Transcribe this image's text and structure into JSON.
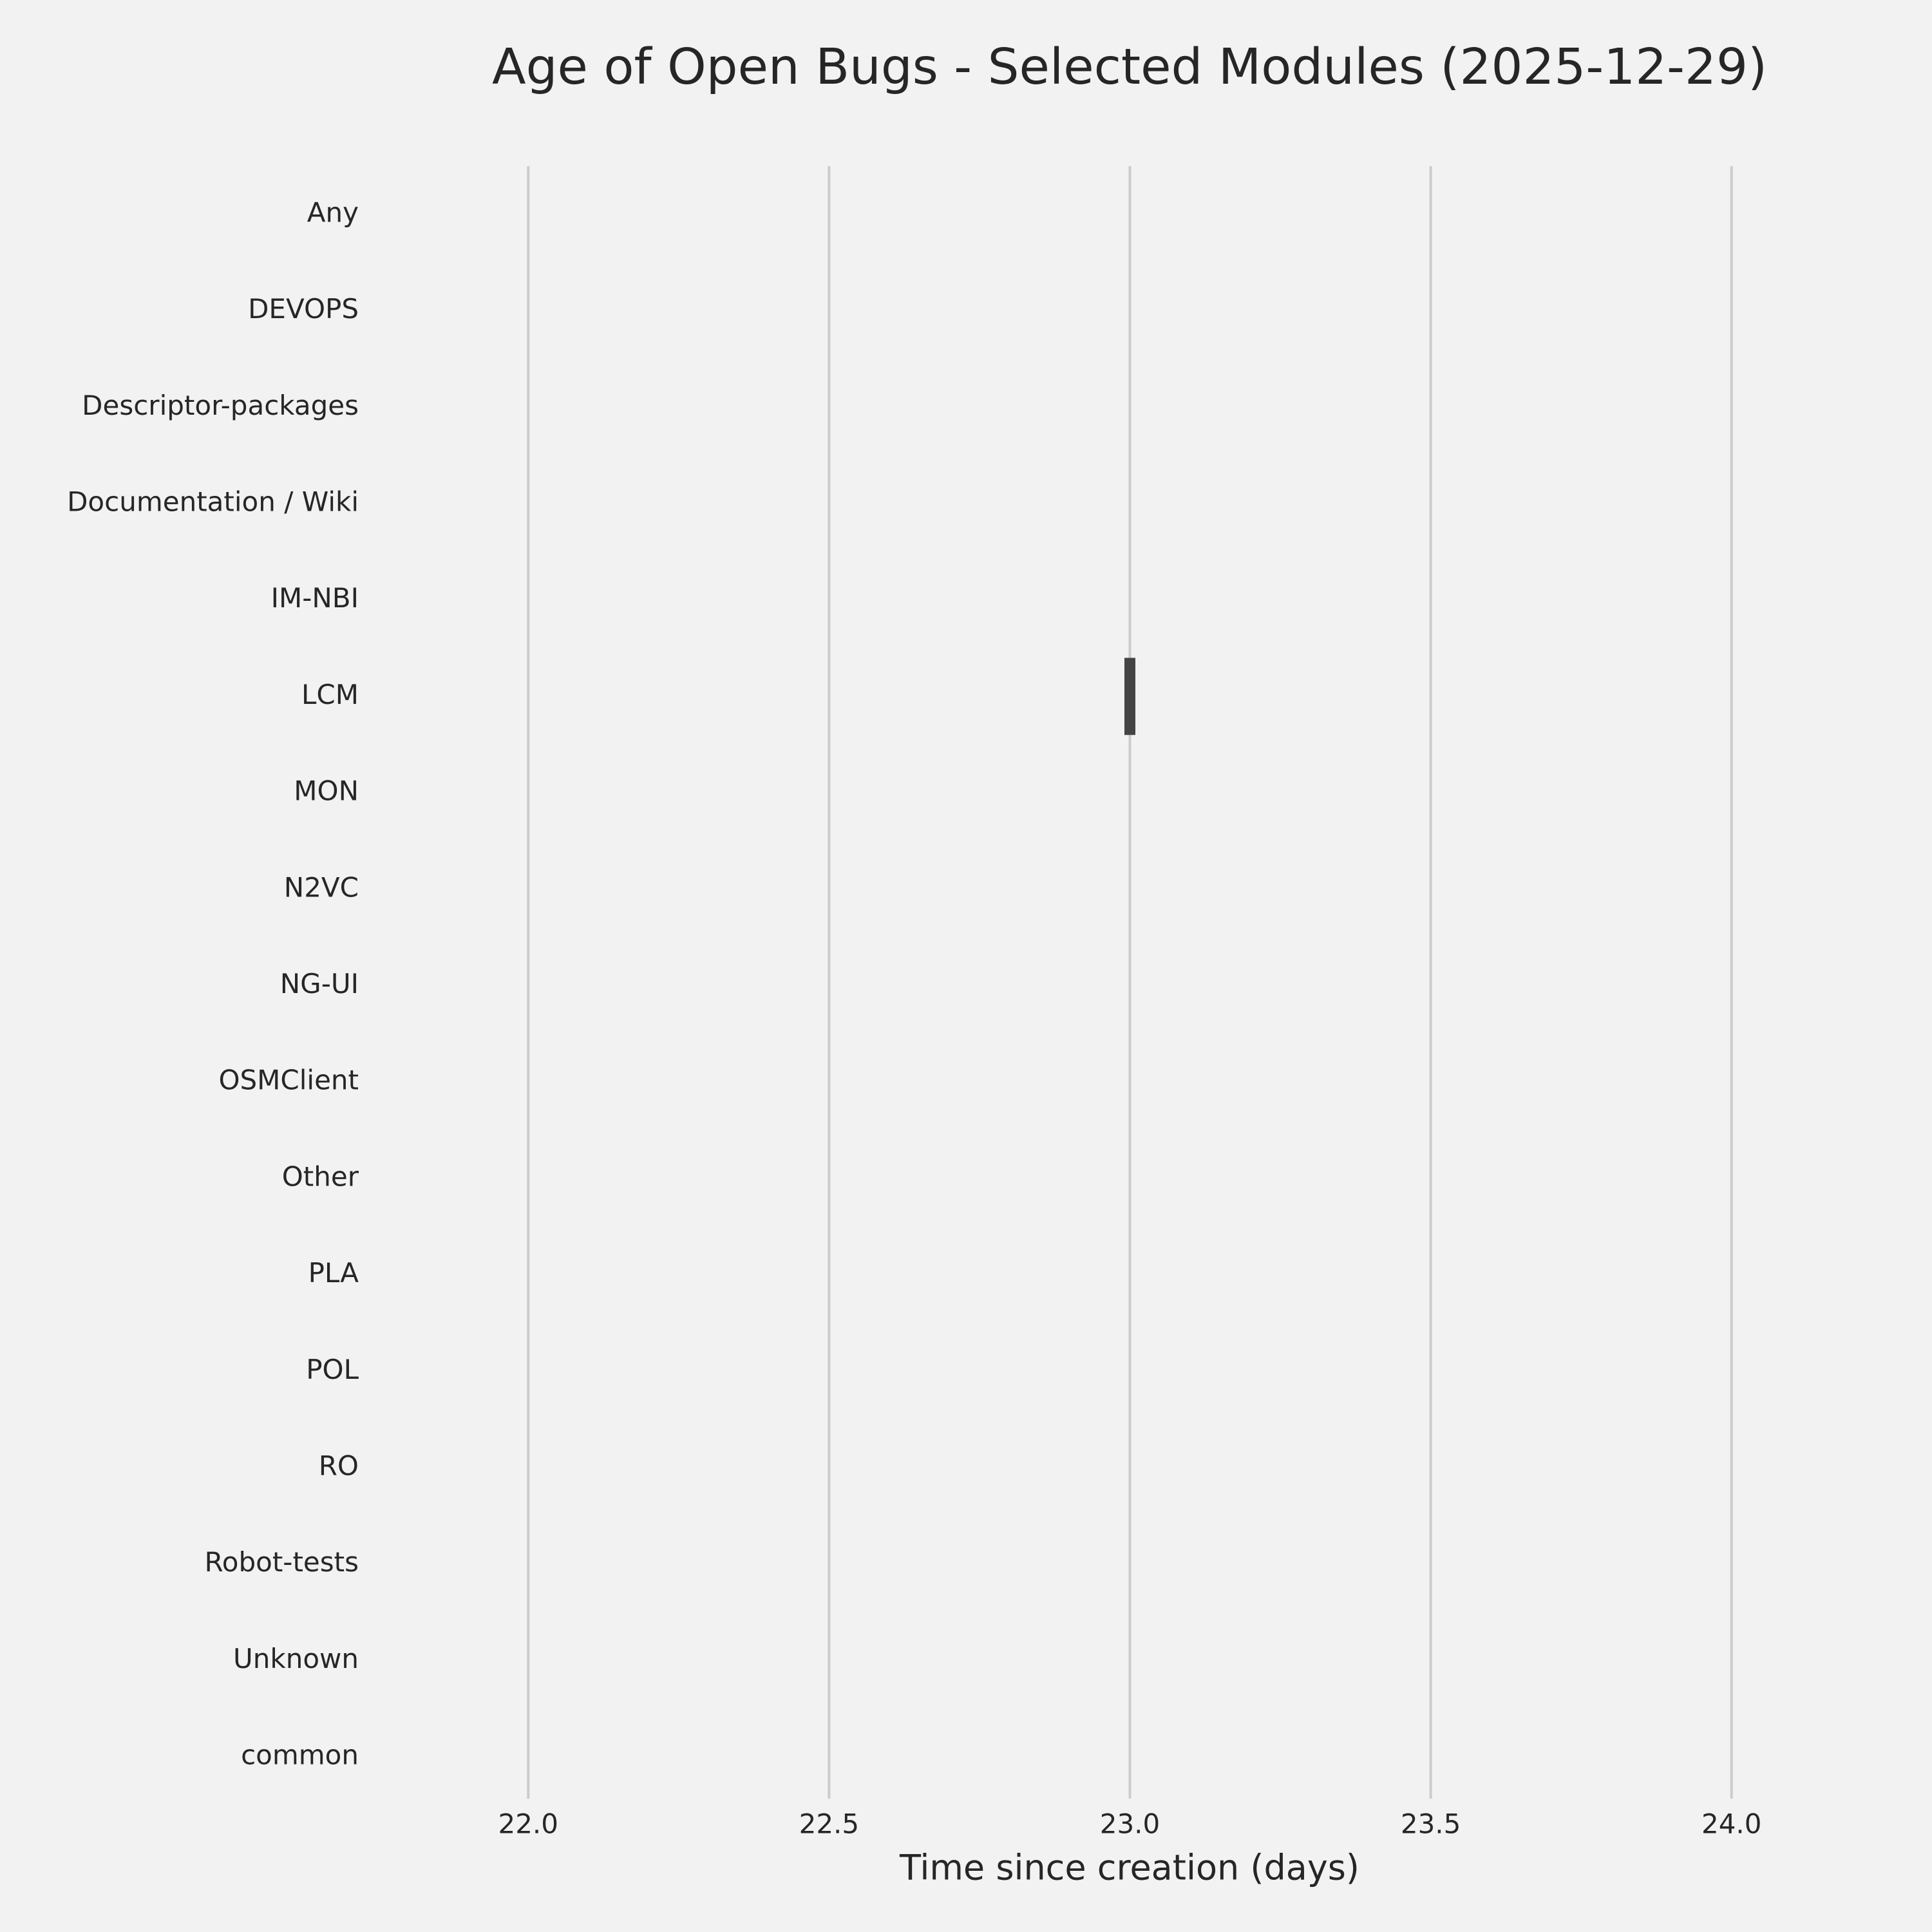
{
  "chart_data": {
    "type": "box",
    "title": "Age of Open Bugs - Selected Modules (2025-12-29)",
    "x_label": "Time since creation (days)",
    "categories": [
      "Any",
      "DEVOPS",
      "Descriptor-packages",
      "Documentation / Wiki",
      "IM-NBI",
      "LCM",
      "MON",
      "N2VC",
      "NG-UI",
      "OSMClient",
      "Other",
      "PLA",
      "POL",
      "RO",
      "Robot-tests",
      "Unknown",
      "common"
    ],
    "values": [
      null,
      null,
      null,
      null,
      null,
      23,
      null,
      null,
      null,
      null,
      null,
      null,
      null,
      null,
      null,
      null,
      null
    ],
    "color": "#444444",
    "xlim": [
      21.73,
      24.27
    ],
    "xticks": [
      {
        "value": 22,
        "label": "22.0"
      },
      {
        "value": 22.5,
        "label": "22.5"
      },
      {
        "value": 23,
        "label": "23.0"
      },
      {
        "value": 23.5,
        "label": "23.5"
      },
      {
        "value": 24,
        "label": "24.0"
      }
    ],
    "grid": true
  }
}
